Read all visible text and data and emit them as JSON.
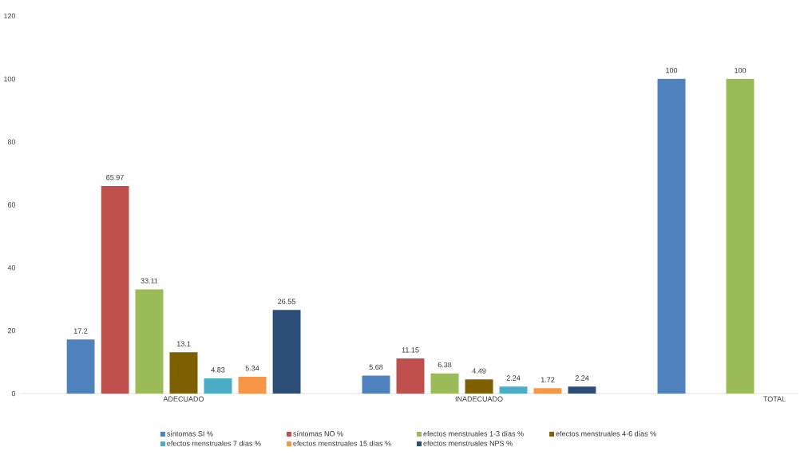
{
  "chart_data": {
    "type": "bar",
    "categories": [
      "ADECUADO",
      "INADECUADO",
      "TOTAL"
    ],
    "series": [
      {
        "name": "síntomas SI %",
        "color": "#4f81bd",
        "values": [
          17.2,
          5.68,
          100
        ]
      },
      {
        "name": "síntomas NO %",
        "color": "#c0504d",
        "values": [
          65.97,
          11.15,
          null
        ]
      },
      {
        "name": "efectos menstruales 1-3 días %",
        "color": "#9bbb59",
        "values": [
          33.11,
          6.38,
          100
        ]
      },
      {
        "name": "efectos menstruales 4-6 días %",
        "color": "#7f6000",
        "values": [
          13.1,
          4.49,
          null
        ]
      },
      {
        "name": "efectos menstruales 7 días %",
        "color": "#4bacc6",
        "values": [
          4.83,
          2.24,
          null
        ]
      },
      {
        "name": "efectos menstruales 15 días %",
        "color": "#f79646",
        "values": [
          5.34,
          1.72,
          null
        ]
      },
      {
        "name": "efectos menstruales NPS %",
        "color": "#2c4d75",
        "values": [
          26.55,
          2.24,
          null
        ]
      }
    ],
    "ylim": [
      0,
      120
    ],
    "yticks": [
      0,
      20,
      40,
      60,
      80,
      100,
      120
    ],
    "grid": false,
    "legend": "bottom",
    "data_labels": true
  }
}
